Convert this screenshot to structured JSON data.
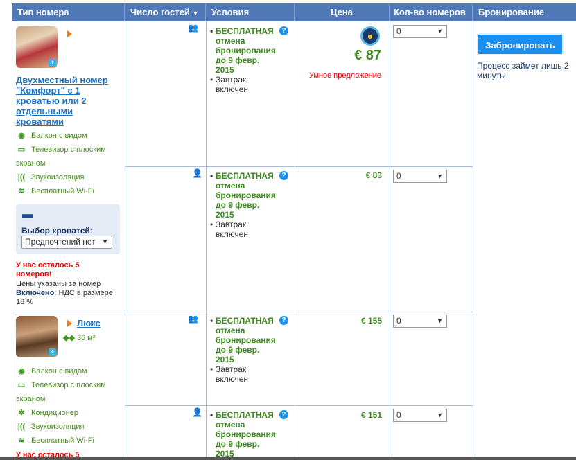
{
  "headers": {
    "room_type": "Тип номера",
    "guests": "Число гостей",
    "conditions": "Условия",
    "price": "Цена",
    "rooms_count": "Кол-во номеров",
    "booking": "Бронирование"
  },
  "rooms": [
    {
      "name": "Двухместный номер \"Комфорт\" с 1 кроватью или 2 отдельными кроватями",
      "amenities": [
        {
          "icon": "eye-icon",
          "label": "Балкон с видом"
        },
        {
          "icon": "tv-icon",
          "label": "Телевизор с плоским экраном"
        },
        {
          "icon": "soundproof-icon",
          "label": "Звукоизоляция"
        },
        {
          "icon": "wifi-icon",
          "label": "Бесплатный Wi-Fi"
        }
      ],
      "bed_choice": {
        "label": "Выбор кроватей:",
        "value": "Предпочтений нет"
      },
      "left_warning": "У нас осталось 5 номеров!",
      "price_note": "Цены указаны за номер",
      "included_label": "Включено",
      "included_text": ": НДС в размере 18 %"
    },
    {
      "name": "Люкс",
      "size": "36 м²",
      "amenities": [
        {
          "icon": "eye-icon",
          "label": "Балкон с видом"
        },
        {
          "icon": "tv-icon",
          "label": "Телевизор с плоским экраном"
        },
        {
          "icon": "ac-icon",
          "label": "Кондиционер"
        },
        {
          "icon": "soundproof-icon",
          "label": "Звукоизоляция"
        },
        {
          "icon": "wifi-icon",
          "label": "Бесплатный Wi-Fi"
        }
      ],
      "left_warning": "У нас осталось 5"
    }
  ],
  "offers": [
    {
      "guests": 2,
      "free_cancel": "БЕСПЛАТНАЯ отмена бронирования до 9 февр. 2015",
      "breakfast": "Завтрак включен",
      "price": "€ 87",
      "smart": "Умное предложение",
      "qty": "0"
    },
    {
      "guests": 1,
      "free_cancel": "БЕСПЛАТНАЯ отмена бронирования до 9 февр. 2015",
      "breakfast": "Завтрак включен",
      "price": "€ 83",
      "qty": "0"
    },
    {
      "guests": 2,
      "free_cancel": "БЕСПЛАТНАЯ отмена бронирования до 9 февр. 2015",
      "breakfast": "Завтрак включен",
      "price": "€ 155",
      "qty": "0"
    },
    {
      "guests": 1,
      "free_cancel": "БЕСПЛАТНАЯ отмена бронирования до 9 февр. 2015",
      "price": "€ 151",
      "qty": "0"
    }
  ],
  "booking": {
    "button": "Забронировать",
    "note": "Процесс займет лишь 2 минуты"
  },
  "colors": {
    "header": "#4e79b6",
    "price_green": "#3d8b1e",
    "warning_red": "#e00000",
    "button": "#1a8ff0"
  }
}
